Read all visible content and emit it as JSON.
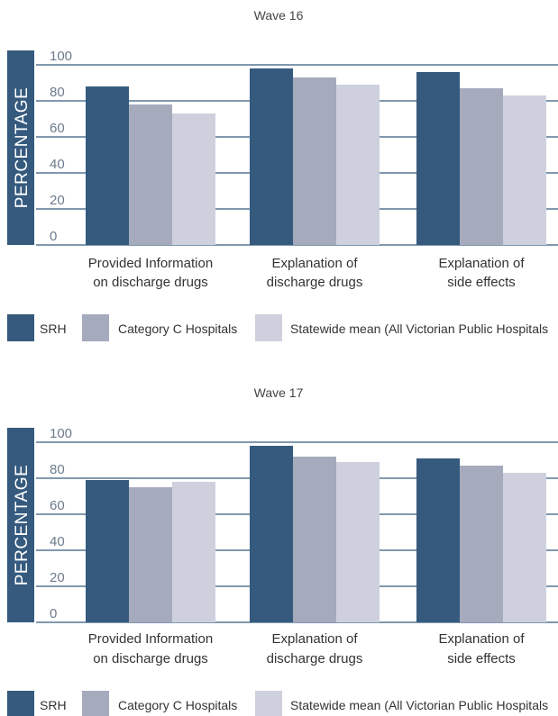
{
  "chart_data": [
    {
      "type": "bar",
      "title": "Wave 16",
      "ylabel": "PERCENTAGE",
      "xlabel": "",
      "ylim": [
        0,
        100
      ],
      "yticks": [
        0,
        20,
        40,
        60,
        80,
        100
      ],
      "categories": [
        [
          "Provided Information",
          "on discharge drugs"
        ],
        [
          "Explanation of",
          "discharge drugs"
        ],
        [
          "Explanation of",
          "side effects"
        ]
      ],
      "series": [
        {
          "name": "SRH",
          "color": "#355a7e",
          "values": [
            88,
            98,
            96
          ]
        },
        {
          "name": "Category C Hospitals",
          "color": "#a5abbd",
          "values": [
            78,
            93,
            87
          ]
        },
        {
          "name": "Statewide mean (All Victorian Public Hospitals",
          "color": "#cfd0dd",
          "values": [
            73,
            89,
            83
          ]
        }
      ],
      "grid": true,
      "legend": "bottom"
    },
    {
      "type": "bar",
      "title": "Wave 17",
      "ylabel": "PERCENTAGE",
      "xlabel": "",
      "ylim": [
        0,
        100
      ],
      "yticks": [
        0,
        20,
        40,
        60,
        80,
        100
      ],
      "categories": [
        [
          "Provided Information",
          "on discharge drugs"
        ],
        [
          "Explanation of",
          "discharge drugs"
        ],
        [
          "Explanation of",
          "side effects"
        ]
      ],
      "series": [
        {
          "name": "SRH",
          "color": "#355a7e",
          "values": [
            79,
            98,
            91
          ]
        },
        {
          "name": "Category C Hospitals",
          "color": "#a5abbd",
          "values": [
            75,
            92,
            87
          ]
        },
        {
          "name": "Statewide mean (All Victorian Public Hospitals",
          "color": "#cfd0dd",
          "values": [
            78,
            89,
            83
          ]
        }
      ],
      "grid": true,
      "legend": "bottom"
    }
  ]
}
